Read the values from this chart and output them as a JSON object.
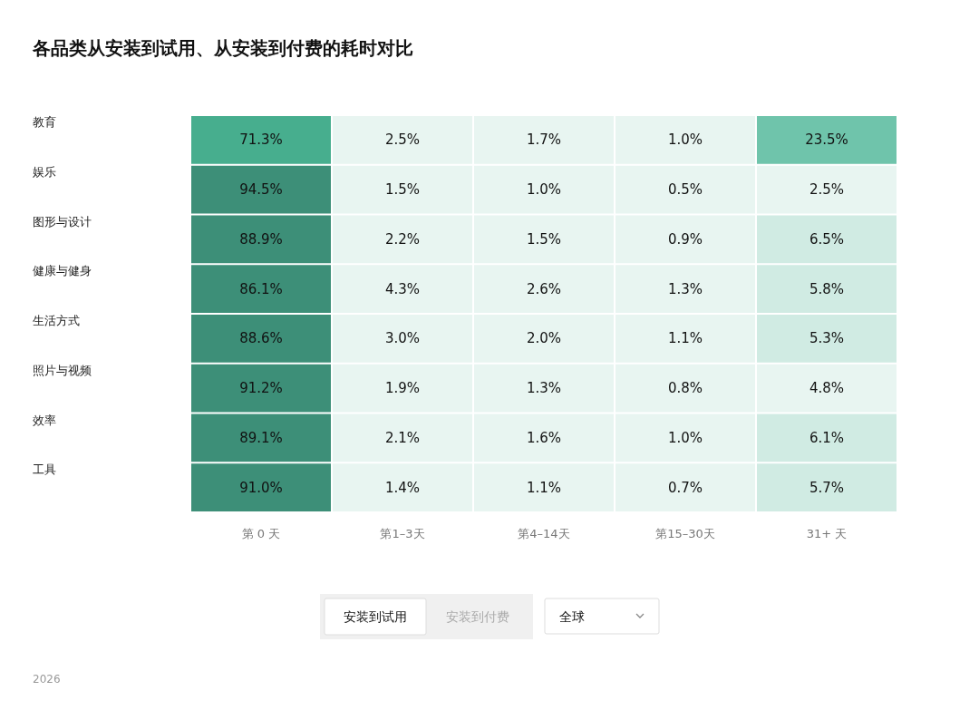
{
  "chart_data": {
    "type": "heatmap",
    "title": "各品类从安装到试用、从安装到付费的耗时对比",
    "categories": [
      "第 0 天",
      "第1–3天",
      "第4–14天",
      "第15–30天",
      "31+ 天"
    ],
    "y_categories": [
      "教育",
      "娱乐",
      "图形与设计",
      "健康与健身",
      "生活方式",
      "照片与视频",
      "效率",
      "工具"
    ],
    "cells": [
      [
        71.3,
        2.5,
        1.7,
        1.0,
        23.5
      ],
      [
        94.5,
        1.5,
        1.0,
        0.5,
        2.5
      ],
      [
        88.9,
        2.2,
        1.5,
        0.9,
        6.5
      ],
      [
        86.1,
        4.3,
        2.6,
        1.3,
        5.8
      ],
      [
        88.6,
        3.0,
        2.0,
        1.1,
        5.3
      ],
      [
        91.2,
        1.9,
        1.3,
        0.8,
        4.8
      ],
      [
        89.1,
        2.1,
        1.6,
        1.0,
        6.1
      ],
      [
        91.0,
        1.4,
        1.1,
        0.7,
        5.7
      ]
    ],
    "cell_labels": [
      [
        "71.3%",
        "2.5%",
        "1.7%",
        "1.0%",
        "23.5%"
      ],
      [
        "94.5%",
        "1.5%",
        "1.0%",
        "0.5%",
        "2.5%"
      ],
      [
        "88.9%",
        "2.2%",
        "1.5%",
        "0.9%",
        "6.5%"
      ],
      [
        "86.1%",
        "4.3%",
        "2.6%",
        "1.3%",
        "5.8%"
      ],
      [
        "88.6%",
        "3.0%",
        "2.0%",
        "1.1%",
        "5.3%"
      ],
      [
        "91.2%",
        "1.9%",
        "1.3%",
        "0.8%",
        "4.8%"
      ],
      [
        "89.1%",
        "2.1%",
        "1.6%",
        "1.0%",
        "6.1%"
      ],
      [
        "91.0%",
        "1.4%",
        "1.1%",
        "0.7%",
        "5.7%"
      ]
    ],
    "annotations": [
      "安装到试用",
      "安装到付费",
      "全球",
      "2026"
    ]
  }
}
